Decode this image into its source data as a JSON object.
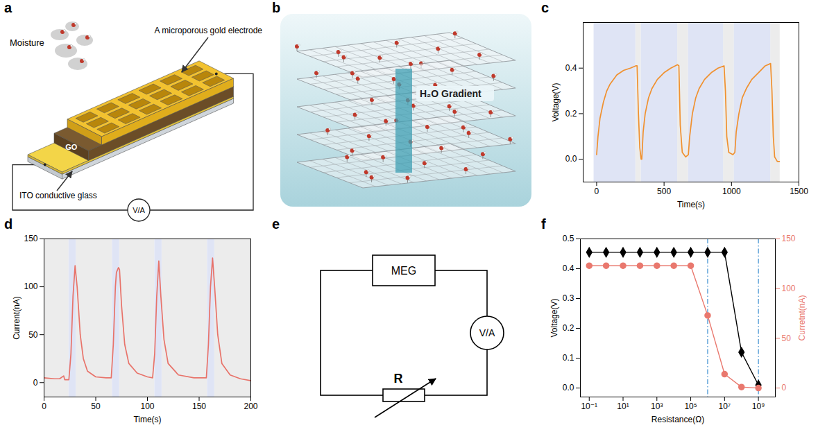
{
  "diagrams": [
    {
      "panel": "a",
      "texts": {
        "moisture": "Moisture",
        "electrode": "A microporous gold electrode",
        "substrate": "ITO conductive glass",
        "layer": "GO",
        "meter": "V/A"
      }
    },
    {
      "panel": "b",
      "texts": {
        "gradient": "H₂O Gradient"
      }
    },
    {
      "panel": "e",
      "texts": {
        "generator": "MEG",
        "meter": "V/A",
        "resistor": "R"
      }
    }
  ],
  "chart_data": [
    {
      "panel": "c",
      "type": "line",
      "x_label": "Time(s)",
      "y_label": "Voltage(V)",
      "grid": false,
      "x": [
        0,
        10,
        25,
        50,
        75,
        100,
        150,
        200,
        250,
        290,
        300,
        310,
        320,
        330,
        335,
        345,
        360,
        385,
        410,
        450,
        500,
        550,
        600,
        610,
        620,
        635,
        660,
        680,
        690,
        710,
        735,
        760,
        800,
        850,
        900,
        945,
        955,
        965,
        980,
        1010,
        1025,
        1035,
        1055,
        1080,
        1110,
        1150,
        1200,
        1250,
        1290,
        1300,
        1310,
        1320,
        1340,
        1355
      ],
      "values": [
        0.02,
        0.1,
        0.18,
        0.25,
        0.3,
        0.33,
        0.37,
        0.39,
        0.4,
        0.41,
        0.41,
        0.2,
        0.05,
        0.0,
        0.0,
        0.12,
        0.2,
        0.27,
        0.31,
        0.35,
        0.38,
        0.4,
        0.415,
        0.41,
        0.15,
        0.03,
        0.01,
        0.02,
        0.1,
        0.2,
        0.27,
        0.31,
        0.35,
        0.38,
        0.4,
        0.41,
        0.3,
        0.1,
        0.03,
        0.02,
        0.03,
        0.12,
        0.2,
        0.27,
        0.31,
        0.35,
        0.38,
        0.41,
        0.42,
        0.3,
        0.1,
        0.01,
        -0.01,
        -0.01
      ],
      "color": "#f0912f",
      "xlim": [
        -100,
        1500
      ],
      "xticks": [
        0,
        500,
        1000,
        1500
      ],
      "ylim": [
        -0.1,
        0.6
      ],
      "yticks": [
        {
          "value": 0,
          "label": "0.0"
        },
        0.2,
        0.4
      ],
      "bands": [
        {
          "color": "#ececec",
          "intervals": [
            [
              290,
              330
            ],
            [
              600,
              680
            ],
            [
              940,
              1020
            ],
            [
              1290,
              1360
            ]
          ]
        },
        {
          "color": "#dfe4f5",
          "intervals": [
            [
              -20,
              290
            ],
            [
              330,
              600
            ],
            [
              680,
              940
            ],
            [
              1020,
              1290
            ]
          ]
        }
      ]
    },
    {
      "panel": "d",
      "type": "line",
      "x_label": "Time(s)",
      "y_label": "Current(nA)",
      "grid": false,
      "x": [
        0,
        10,
        15,
        19,
        20,
        24,
        26,
        28,
        30,
        32,
        35,
        38,
        42,
        50,
        60,
        65,
        67,
        69,
        70,
        72,
        73,
        75,
        78,
        82,
        90,
        100,
        105,
        107,
        109,
        111,
        113,
        116,
        120,
        130,
        145,
        157,
        159,
        161,
        163,
        165,
        168,
        172,
        180,
        190,
        200
      ],
      "values": [
        5,
        4,
        4,
        7,
        3,
        3,
        30,
        90,
        122,
        100,
        50,
        25,
        12,
        6,
        5,
        5,
        40,
        100,
        115,
        120,
        118,
        80,
        40,
        20,
        10,
        6,
        5,
        30,
        90,
        127,
        90,
        45,
        20,
        8,
        5,
        5,
        40,
        100,
        130,
        100,
        50,
        20,
        8,
        4,
        2
      ],
      "color": "#e8736a",
      "xlim": [
        0,
        200
      ],
      "xticks": [
        0,
        50,
        100,
        150,
        200
      ],
      "ylim": [
        -15,
        150
      ],
      "yticks": [
        0,
        50,
        100,
        150
      ],
      "bands": [
        {
          "color": "#ececec",
          "intervals": [
            [
              0,
              24
            ],
            [
              31,
              66
            ],
            [
              73,
              107
            ],
            [
              114,
              158
            ],
            [
              165,
              200
            ]
          ]
        },
        {
          "color": "#dfe4f5",
          "intervals": [
            [
              24,
              31
            ],
            [
              66,
              73
            ],
            [
              107,
              114
            ],
            [
              158,
              165
            ]
          ]
        }
      ]
    },
    {
      "panel": "f",
      "type": "line",
      "x_label": "Resistance(Ω)",
      "y_label": "Voltage(V)",
      "y2_label": "Curretnt(nA)",
      "log": "x",
      "grid": false,
      "x": [
        0.1,
        1,
        10,
        100,
        1000,
        10000,
        100000,
        1000000,
        10000000,
        100000000,
        1000000000
      ],
      "xlim": [
        0.03,
        10000000000
      ],
      "xticks": [
        {
          "value": 0.1,
          "label": "10⁻¹"
        },
        {
          "value": 10,
          "label": "10¹"
        },
        {
          "value": 1000,
          "label": "10³"
        },
        {
          "value": 100000,
          "label": "10⁵"
        },
        {
          "value": 10000000,
          "label": "10⁷"
        },
        {
          "value": 1000000000,
          "label": "10⁹"
        }
      ],
      "ylim": [
        -0.03,
        0.5
      ],
      "yticks": [
        {
          "value": 0,
          "label": "0.0"
        },
        0.1,
        0.2,
        0.3,
        0.4,
        0.5
      ],
      "y2lim": [
        -9,
        150
      ],
      "y2ticks": [
        0,
        50,
        100,
        150
      ],
      "series": [
        {
          "color": "#000000",
          "marker": "diamond",
          "values": [
            0.455,
            0.455,
            0.455,
            0.455,
            0.455,
            0.455,
            0.455,
            0.455,
            0.455,
            0.12,
            0.01
          ]
        },
        {
          "color": "#e9786e",
          "marker": "circle",
          "axis": "y2",
          "values": [
            123,
            123,
            123,
            123,
            123,
            123,
            123,
            73,
            14,
            1,
            0
          ]
        }
      ],
      "vlines": {
        "color": "#3d8fd1",
        "line_style": "dashdot",
        "values": [
          1000000,
          1000000000
        ]
      }
    }
  ]
}
